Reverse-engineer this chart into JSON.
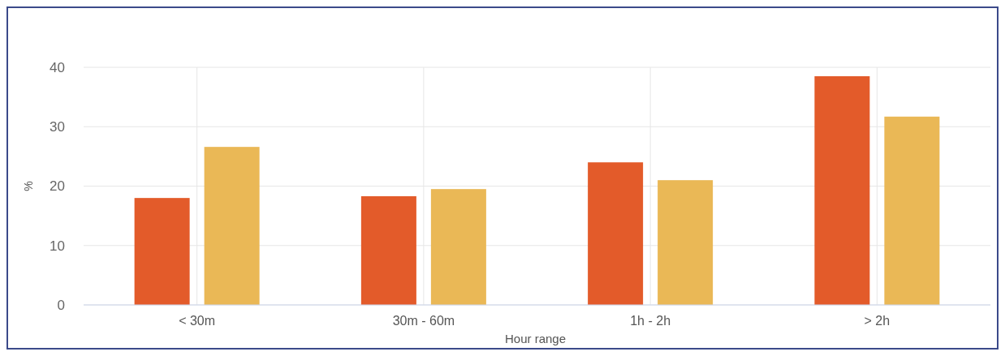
{
  "chart_data": {
    "type": "bar",
    "xlabel": "Hour range",
    "ylabel": "%",
    "categories": [
      "< 30m",
      "30m - 60m",
      "1h - 2h",
      "> 2h"
    ],
    "series": [
      {
        "color": "#e35b2a",
        "values": [
          18,
          18.3,
          24,
          38.5
        ]
      },
      {
        "color": "#eab856",
        "values": [
          26.6,
          19.5,
          21,
          31.7
        ]
      }
    ],
    "ylim": [
      0,
      40
    ],
    "yticks": [
      0,
      10,
      20,
      30,
      40
    ],
    "grid": true
  }
}
